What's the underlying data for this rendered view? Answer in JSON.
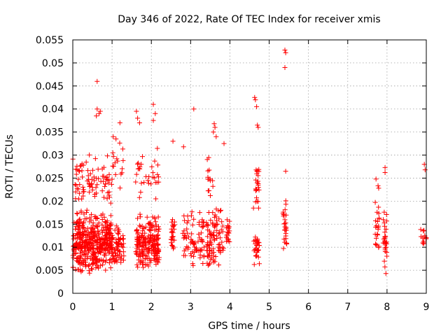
{
  "chart_data": {
    "type": "scatter",
    "title": "Day 346 of 2022, Rate Of TEC Index for receiver xmis",
    "xlabel": "GPS time / hours",
    "ylabel": "ROTI / TECUs",
    "xlim": [
      0,
      9
    ],
    "ylim": [
      0,
      0.055
    ],
    "xticks": [
      "0",
      "1",
      "2",
      "3",
      "4",
      "5",
      "6",
      "7",
      "8",
      "9"
    ],
    "yticks": [
      "0",
      "0.005",
      "0.01",
      "0.015",
      "0.02",
      "0.025",
      "0.03",
      "0.035",
      "0.04",
      "0.045",
      "0.05",
      "0.055"
    ],
    "grid": true,
    "series": [
      {
        "name": "ROTI",
        "color": "#ff0000",
        "marker": "plus",
        "clusters": [
          {
            "x": [
              0.0,
              0.5
            ],
            "y": [
              0.004,
              0.019
            ],
            "n": 220
          },
          {
            "x": [
              0.0,
              0.5
            ],
            "y": [
              0.019,
              0.032
            ],
            "n": 45
          },
          {
            "x": [
              0.5,
              1.0
            ],
            "y": [
              0.005,
              0.018
            ],
            "n": 230
          },
          {
            "x": [
              0.5,
              1.0
            ],
            "y": [
              0.018,
              0.031
            ],
            "n": 40
          },
          {
            "x": [
              1.0,
              1.3
            ],
            "y": [
              0.005,
              0.016
            ],
            "n": 70
          },
          {
            "x": [
              1.0,
              1.3
            ],
            "y": [
              0.022,
              0.034
            ],
            "n": 14
          },
          {
            "x": [
              1.6,
              2.2
            ],
            "y": [
              0.005,
              0.018
            ],
            "n": 220
          },
          {
            "x": [
              1.6,
              2.2
            ],
            "y": [
              0.02,
              0.033
            ],
            "n": 32
          },
          {
            "x": [
              2.5,
              2.6
            ],
            "y": [
              0.009,
              0.019
            ],
            "n": 25
          },
          {
            "x": [
              2.8,
              2.95
            ],
            "y": [
              0.008,
              0.018
            ],
            "n": 22
          },
          {
            "x": [
              3.0,
              3.35
            ],
            "y": [
              0.005,
              0.019
            ],
            "n": 55
          },
          {
            "x": [
              3.4,
              3.6
            ],
            "y": [
              0.005,
              0.018
            ],
            "n": 55
          },
          {
            "x": [
              3.4,
              3.6
            ],
            "y": [
              0.021,
              0.032
            ],
            "n": 14
          },
          {
            "x": [
              3.6,
              3.85
            ],
            "y": [
              0.006,
              0.021
            ],
            "n": 40
          },
          {
            "x": [
              3.9,
              4.0
            ],
            "y": [
              0.01,
              0.018
            ],
            "n": 20
          },
          {
            "x": [
              4.6,
              4.75
            ],
            "y": [
              0.006,
              0.014
            ],
            "n": 30
          },
          {
            "x": [
              4.65,
              4.75
            ],
            "y": [
              0.018,
              0.03
            ],
            "n": 22
          },
          {
            "x": [
              5.35,
              5.45
            ],
            "y": [
              0.008,
              0.023
            ],
            "n": 28
          },
          {
            "x": [
              7.7,
              7.8
            ],
            "y": [
              0.008,
              0.024
            ],
            "n": 24
          },
          {
            "x": [
              7.9,
              8.0
            ],
            "y": [
              0.004,
              0.02
            ],
            "n": 30
          },
          {
            "x": [
              8.85,
              9.0
            ],
            "y": [
              0.01,
              0.015
            ],
            "n": 14
          }
        ],
        "outliers": [
          [
            0.62,
            0.046
          ],
          [
            0.62,
            0.04
          ],
          [
            0.6,
            0.0385
          ],
          [
            0.67,
            0.039
          ],
          [
            0.7,
            0.0395
          ],
          [
            1.03,
            0.034
          ],
          [
            1.1,
            0.0335
          ],
          [
            1.2,
            0.037
          ],
          [
            1.02,
            0.0305
          ],
          [
            1.62,
            0.0395
          ],
          [
            1.65,
            0.038
          ],
          [
            1.7,
            0.037
          ],
          [
            2.05,
            0.041
          ],
          [
            2.1,
            0.039
          ],
          [
            2.05,
            0.0375
          ],
          [
            2.55,
            0.033
          ],
          [
            2.82,
            0.0318
          ],
          [
            3.08,
            0.04
          ],
          [
            3.6,
            0.0368
          ],
          [
            3.62,
            0.036
          ],
          [
            3.58,
            0.035
          ],
          [
            3.65,
            0.034
          ],
          [
            3.85,
            0.0325
          ],
          [
            4.63,
            0.0425
          ],
          [
            4.65,
            0.042
          ],
          [
            4.68,
            0.0405
          ],
          [
            4.7,
            0.0365
          ],
          [
            4.72,
            0.036
          ],
          [
            4.6,
            0.0185
          ],
          [
            4.73,
            0.0185
          ],
          [
            5.4,
            0.0528
          ],
          [
            5.42,
            0.0522
          ],
          [
            5.4,
            0.049
          ],
          [
            5.42,
            0.0265
          ],
          [
            8.95,
            0.028
          ],
          [
            8.97,
            0.0268
          ],
          [
            7.95,
            0.0273
          ],
          [
            7.95,
            0.0262
          ],
          [
            7.72,
            0.0248
          ]
        ]
      }
    ]
  }
}
